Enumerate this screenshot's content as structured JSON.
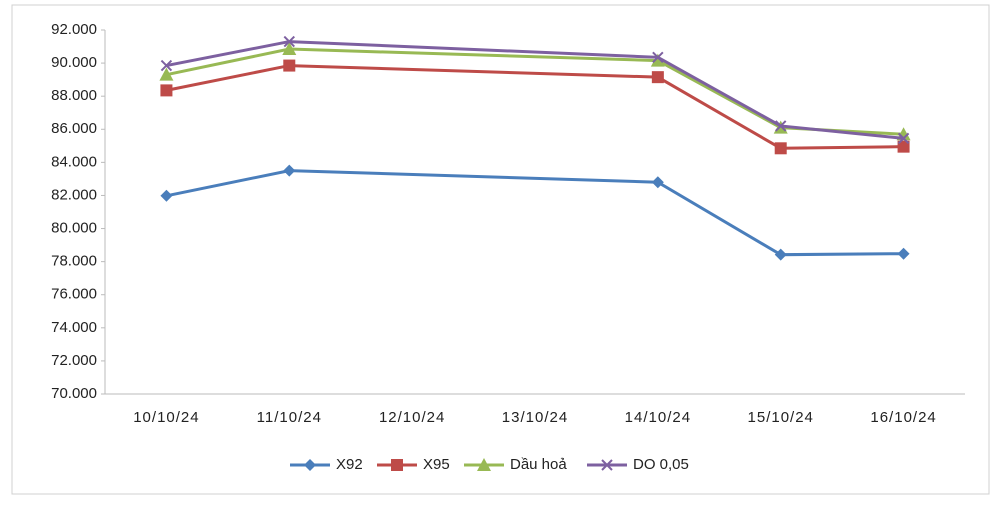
{
  "chart_data": {
    "type": "line",
    "categories": [
      "10/10/24",
      "11/10/24",
      "12/10/24",
      "13/10/24",
      "14/10/24",
      "15/10/24",
      "16/10/24"
    ],
    "series": [
      {
        "name": "X92",
        "color": "#4a7ebb",
        "marker": "diamond",
        "values": [
          81980,
          83500,
          null,
          null,
          82800,
          78420,
          78480
        ]
      },
      {
        "name": "X95",
        "color": "#be4b48",
        "marker": "square",
        "values": [
          88350,
          89850,
          null,
          null,
          89150,
          84850,
          84950
        ]
      },
      {
        "name": "Dầu hoả",
        "color": "#98b954",
        "marker": "triangle",
        "values": [
          89300,
          90850,
          null,
          null,
          90150,
          86100,
          85700
        ]
      },
      {
        "name": "DO 0,05",
        "color": "#7d60a0",
        "marker": "x",
        "values": [
          89850,
          91300,
          null,
          null,
          90350,
          86200,
          85450
        ]
      }
    ],
    "ylim": [
      70000,
      92000
    ],
    "yticks": [
      {
        "value": 70000,
        "label": "70.000"
      },
      {
        "value": 72000,
        "label": "72.000"
      },
      {
        "value": 74000,
        "label": "74.000"
      },
      {
        "value": 76000,
        "label": "76.000"
      },
      {
        "value": 78000,
        "label": "78.000"
      },
      {
        "value": 80000,
        "label": "80.000"
      },
      {
        "value": 82000,
        "label": "82.000"
      },
      {
        "value": 84000,
        "label": "84.000"
      },
      {
        "value": 86000,
        "label": "86.000"
      },
      {
        "value": 88000,
        "label": "88.000"
      },
      {
        "value": 90000,
        "label": "90.000"
      },
      {
        "value": 92000,
        "label": "92.000"
      }
    ],
    "grid": false,
    "legend": "bottom"
  }
}
